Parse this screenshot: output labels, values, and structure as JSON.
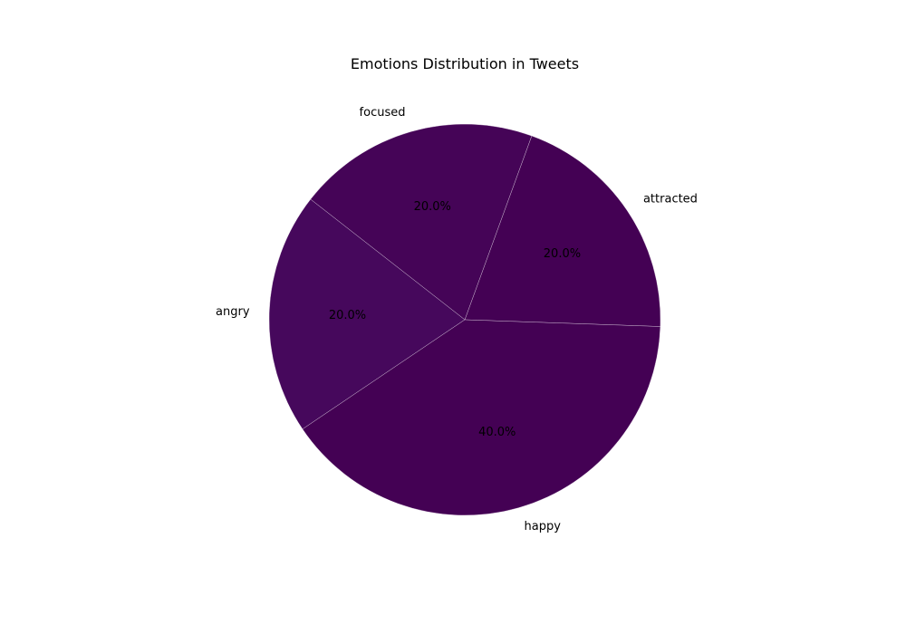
{
  "chart_data": {
    "type": "pie",
    "title": "Emotions Distribution in Tweets",
    "categories": [
      "attracted",
      "focused",
      "angry",
      "happy"
    ],
    "values": [
      20.0,
      20.0,
      20.0,
      40.0
    ],
    "percent_labels": [
      "20.0%",
      "20.0%",
      "20.0%",
      "40.0%"
    ],
    "colors": [
      "#440154",
      "#450457",
      "#46085c",
      "#440154"
    ],
    "edge_color": "#ffffff",
    "start_angle_deg": -2,
    "direction": "counterclockwise"
  }
}
